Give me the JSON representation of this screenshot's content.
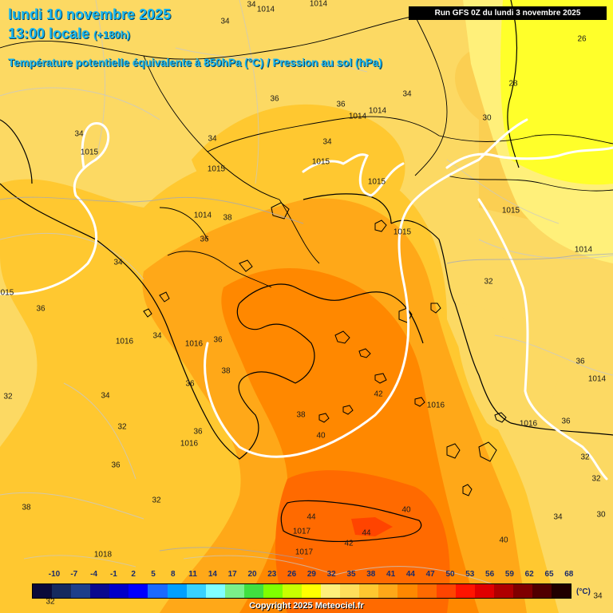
{
  "header": {
    "line1": "lundi 10 novembre 2025",
    "line2": "13:00 locale",
    "line2_small": "(+180h)",
    "subtitle": "Température potentielle équivalente à 850hPa (°C) / Pression au sol (hPa)",
    "run": "Run GFS 0Z du lundi 3 novembre 2025"
  },
  "labels": [
    {
      "id": "t-34-a",
      "text": "34"
    },
    {
      "id": "t-1014-a",
      "text": "1014"
    },
    {
      "id": "t-1014-b",
      "text": "1014"
    },
    {
      "id": "t-26",
      "text": "26"
    },
    {
      "id": "t-28",
      "text": "28"
    },
    {
      "id": "t-30-a",
      "text": "30"
    },
    {
      "id": "t-34-b",
      "text": "34"
    },
    {
      "id": "t-36-a",
      "text": "36"
    },
    {
      "id": "t-36-b",
      "text": "36"
    },
    {
      "id": "t-1014-c",
      "text": "1014"
    },
    {
      "id": "t-1014-d",
      "text": "1014"
    },
    {
      "id": "t-34-c",
      "text": "34"
    },
    {
      "id": "t-1015-a",
      "text": "1015"
    },
    {
      "id": "t-34-d",
      "text": "34"
    },
    {
      "id": "t-1015-b",
      "text": "1015"
    },
    {
      "id": "t-34-e",
      "text": "34"
    },
    {
      "id": "t-1015-c",
      "text": "1015"
    },
    {
      "id": "t-34-f",
      "text": "34"
    },
    {
      "id": "t-1015-d",
      "text": "1015"
    },
    {
      "id": "t-1014-e",
      "text": "1014"
    },
    {
      "id": "t-38-a",
      "text": "38"
    },
    {
      "id": "t-36-c",
      "text": "36"
    },
    {
      "id": "t-1015-e",
      "text": "1015"
    },
    {
      "id": "t-1015-f",
      "text": "1015"
    },
    {
      "id": "t-1014-f",
      "text": "1014"
    },
    {
      "id": "t-34-g",
      "text": "34"
    },
    {
      "id": "t-32-a",
      "text": "32"
    },
    {
      "id": "t-1015-g",
      "text": "015"
    },
    {
      "id": "t-36-d",
      "text": "36"
    },
    {
      "id": "t-1016-a",
      "text": "1016"
    },
    {
      "id": "t-34-h",
      "text": "34"
    },
    {
      "id": "t-1016-b",
      "text": "1016"
    },
    {
      "id": "t-36-e",
      "text": "36"
    },
    {
      "id": "t-38-b",
      "text": "38"
    },
    {
      "id": "t-36-f",
      "text": "36"
    },
    {
      "id": "t-36-g",
      "text": "36"
    },
    {
      "id": "t-1014-g",
      "text": "1014"
    },
    {
      "id": "t-32-b",
      "text": "32"
    },
    {
      "id": "t-34-i",
      "text": "34"
    },
    {
      "id": "t-42-a",
      "text": "42"
    },
    {
      "id": "t-1016-c",
      "text": "1016"
    },
    {
      "id": "t-1016-d",
      "text": "1016"
    },
    {
      "id": "t-36-h",
      "text": "36"
    },
    {
      "id": "t-32-c",
      "text": "32"
    },
    {
      "id": "t-38-c",
      "text": "38"
    },
    {
      "id": "t-40-a",
      "text": "40"
    },
    {
      "id": "t-36-i",
      "text": "36"
    },
    {
      "id": "t-1016-e",
      "text": "1016"
    },
    {
      "id": "t-32-d",
      "text": "32"
    },
    {
      "id": "t-32-e",
      "text": "32"
    },
    {
      "id": "t-36-j",
      "text": "36"
    },
    {
      "id": "t-32-f",
      "text": "32"
    },
    {
      "id": "t-38-d",
      "text": "38"
    },
    {
      "id": "t-40-b",
      "text": "40"
    },
    {
      "id": "t-44-a",
      "text": "44"
    },
    {
      "id": "t-1017-a",
      "text": "1017"
    },
    {
      "id": "t-44-b",
      "text": "44"
    },
    {
      "id": "t-34-j",
      "text": "34"
    },
    {
      "id": "t-30-b",
      "text": "30"
    },
    {
      "id": "t-1018",
      "text": "1018"
    },
    {
      "id": "t-1017-b",
      "text": "1017"
    },
    {
      "id": "t-42-b",
      "text": "42"
    },
    {
      "id": "t-40-c",
      "text": "40"
    },
    {
      "id": "t-32-g",
      "text": "32"
    },
    {
      "id": "t-34-k",
      "text": "34"
    }
  ],
  "legend": {
    "ticks": [
      "-10",
      "-7",
      "-4",
      "-1",
      "2",
      "5",
      "8",
      "11",
      "14",
      "17",
      "20",
      "23",
      "26",
      "29",
      "32",
      "35",
      "38",
      "41",
      "44",
      "47",
      "50",
      "53",
      "56",
      "59",
      "62",
      "65",
      "68"
    ],
    "colors": [
      "#0a0a3a",
      "#152a5e",
      "#1d3f8a",
      "#0a0a8e",
      "#0000c8",
      "#0000ff",
      "#1a6aff",
      "#00a0ff",
      "#38d2ff",
      "#80ffff",
      "#7af08a",
      "#40e040",
      "#80ff00",
      "#c8ff00",
      "#ffff00",
      "#fff07a",
      "#ffde5a",
      "#ffc830",
      "#ffa818",
      "#ff8800",
      "#ff6a00",
      "#ff4400",
      "#ff1400",
      "#e00000",
      "#b00000",
      "#800000",
      "#500000",
      "#200000"
    ],
    "unit": "(°C)",
    "copyright": "Copyright 2025 Meteociel.fr"
  }
}
